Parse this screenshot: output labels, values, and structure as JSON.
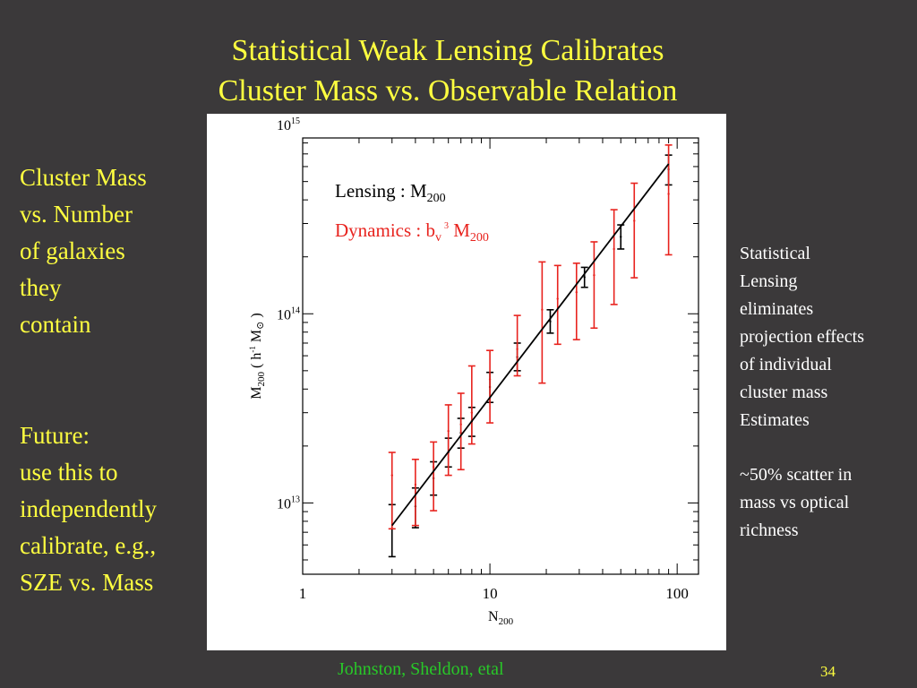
{
  "slide": {
    "title_line1": "Statistical Weak Lensing Calibrates",
    "title_line2": "Cluster Mass vs. Observable Relation",
    "left_top_lines": [
      "Cluster Mass",
      "vs. Number",
      "of galaxies",
      "they",
      "contain"
    ],
    "left_bottom_lines": [
      "Future:",
      "use this to",
      "independently",
      "calibrate, e.g.,",
      "SZE vs. Mass"
    ],
    "right_top_lines": [
      "Statistical",
      "Lensing",
      "eliminates",
      "projection effects",
      "of individual",
      "cluster mass",
      "Estimates"
    ],
    "right_bottom_lines": [
      "~50% scatter in",
      "mass vs optical",
      "richness"
    ],
    "footer_credit": "Johnston, Sheldon, etal",
    "slide_number": "34"
  },
  "colors": {
    "background": "#3b393a",
    "title_text": "#ffff40",
    "body_text": "#ffffff",
    "credit_text": "#28c828",
    "lensing_series": "#000000",
    "dynamics_series": "#e8231e"
  },
  "chart_data": {
    "type": "scatter",
    "x_scale": "log",
    "y_scale": "log",
    "xlim": [
      1,
      130
    ],
    "ylim": [
      4200000000000.0,
      850000000000000.0
    ],
    "x_ticks": [
      {
        "value": 1,
        "label": "1"
      },
      {
        "value": 10,
        "label": "10"
      },
      {
        "value": 100,
        "label": "100"
      }
    ],
    "y_ticks": [
      {
        "value": 10000000000000.0,
        "base": "10",
        "exp": "13"
      },
      {
        "value": 100000000000000.0,
        "base": "10",
        "exp": "14"
      },
      {
        "value": 1000000000000000.0,
        "base": "10",
        "exp": "15"
      }
    ],
    "xlabel": {
      "base": "N",
      "sub": "200"
    },
    "ylabel": {
      "base": "M",
      "sub": "200",
      "unit_open": " ( h",
      "unit_sup": "-1",
      "unit_mid": " M",
      "unit_sym": "⊙",
      "unit_close": " )"
    },
    "legend": [
      {
        "name": "Lensing  :  M",
        "sub": "200",
        "color": "#000000"
      },
      {
        "name": "Dynamics : b",
        "name_sub": "v",
        "name_sup": "3",
        "name_tail": " M",
        "sub": "200",
        "color": "#e8231e"
      }
    ],
    "legend_position": "top-left",
    "fit_line": {
      "x": [
        3,
        90
      ],
      "y": [
        7600000000000.0,
        620000000000000.0
      ]
    },
    "series": [
      {
        "key": "lensing",
        "color": "#000000",
        "points": [
          {
            "x": 3,
            "y": 7300000000000.0,
            "lo": 5200000000000.0,
            "hi": 9800000000000.0
          },
          {
            "x": 4,
            "y": 9600000000000.0,
            "lo": 7400000000000.0,
            "hi": 12000000000000.0
          },
          {
            "x": 5,
            "y": 13500000000000.0,
            "lo": 11000000000000.0,
            "hi": 16500000000000.0
          },
          {
            "x": 6,
            "y": 18500000000000.0,
            "lo": 15500000000000.0,
            "hi": 22000000000000.0
          },
          {
            "x": 7,
            "y": 23500000000000.0,
            "lo": 19500000000000.0,
            "hi": 28000000000000.0
          },
          {
            "x": 8,
            "y": 27000000000000.0,
            "lo": 22500000000000.0,
            "hi": 32000000000000.0
          },
          {
            "x": 10,
            "y": 41000000000000.0,
            "lo": 34000000000000.0,
            "hi": 49000000000000.0
          },
          {
            "x": 14,
            "y": 59000000000000.0,
            "lo": 50000000000000.0,
            "hi": 70000000000000.0
          },
          {
            "x": 21,
            "y": 91000000000000.0,
            "lo": 79000000000000.0,
            "hi": 105000000000000.0
          },
          {
            "x": 32,
            "y": 156000000000000.0,
            "lo": 138000000000000.0,
            "hi": 176000000000000.0
          },
          {
            "x": 50,
            "y": 255000000000000.0,
            "lo": 220000000000000.0,
            "hi": 295000000000000.0
          },
          {
            "x": 90,
            "y": 580000000000000.0,
            "lo": 480000000000000.0,
            "hi": 690000000000000.0
          }
        ]
      },
      {
        "key": "dynamics",
        "color": "#e8231e",
        "points": [
          {
            "x": 3,
            "y": 14000000000000.0,
            "lo": 7300000000000.0,
            "hi": 18500000000000.0
          },
          {
            "x": 4,
            "y": 12500000000000.0,
            "lo": 7600000000000.0,
            "hi": 17000000000000.0
          },
          {
            "x": 5,
            "y": 15500000000000.0,
            "lo": 9100000000000.0,
            "hi": 21000000000000.0
          },
          {
            "x": 6,
            "y": 24000000000000.0,
            "lo": 14000000000000.0,
            "hi": 33000000000000.0
          },
          {
            "x": 7,
            "y": 26000000000000.0,
            "lo": 15000000000000.0,
            "hi": 38000000000000.0
          },
          {
            "x": 8,
            "y": 30000000000000.0,
            "lo": 20500000000000.0,
            "hi": 53000000000000.0
          },
          {
            "x": 10,
            "y": 45000000000000.0,
            "lo": 26500000000000.0,
            "hi": 64000000000000.0
          },
          {
            "x": 14,
            "y": 65000000000000.0,
            "lo": 47000000000000.0,
            "hi": 98000000000000.0
          },
          {
            "x": 19,
            "y": 105000000000000.0,
            "lo": 43000000000000.0,
            "hi": 188000000000000.0
          },
          {
            "x": 23,
            "y": 120000000000000.0,
            "lo": 69000000000000.0,
            "hi": 180000000000000.0
          },
          {
            "x": 29,
            "y": 130000000000000.0,
            "lo": 73000000000000.0,
            "hi": 185000000000000.0
          },
          {
            "x": 36,
            "y": 160000000000000.0,
            "lo": 84000000000000.0,
            "hi": 240000000000000.0
          },
          {
            "x": 46,
            "y": 220000000000000.0,
            "lo": 112000000000000.0,
            "hi": 355000000000000.0
          },
          {
            "x": 59,
            "y": 310000000000000.0,
            "lo": 155000000000000.0,
            "hi": 490000000000000.0
          },
          {
            "x": 90,
            "y": 430000000000000.0,
            "lo": 205000000000000.0,
            "hi": 780000000000000.0
          }
        ]
      }
    ]
  }
}
